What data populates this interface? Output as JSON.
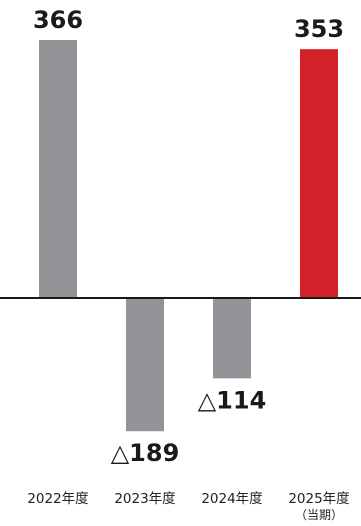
{
  "chart_data": {
    "type": "bar",
    "categories": [
      "2022年度",
      "2023年度",
      "2024年度",
      "2025年度"
    ],
    "category_sublabels": [
      "",
      "",
      "",
      "（当期）"
    ],
    "values": [
      366,
      -189,
      -114,
      353
    ],
    "value_labels": [
      "366",
      "△189",
      "△114",
      "353"
    ],
    "bar_colors": [
      "#939497",
      "#939497",
      "#939497",
      "#d3222a"
    ],
    "ylim": [
      -260,
      400
    ],
    "grid": false,
    "legend": "none",
    "title": "",
    "xlabel": "",
    "ylabel": ""
  },
  "colors": {
    "bar_default": "#939497",
    "bar_highlight": "#d3222a",
    "baseline": "#1a1a1a",
    "text": "#1a1a1a"
  }
}
